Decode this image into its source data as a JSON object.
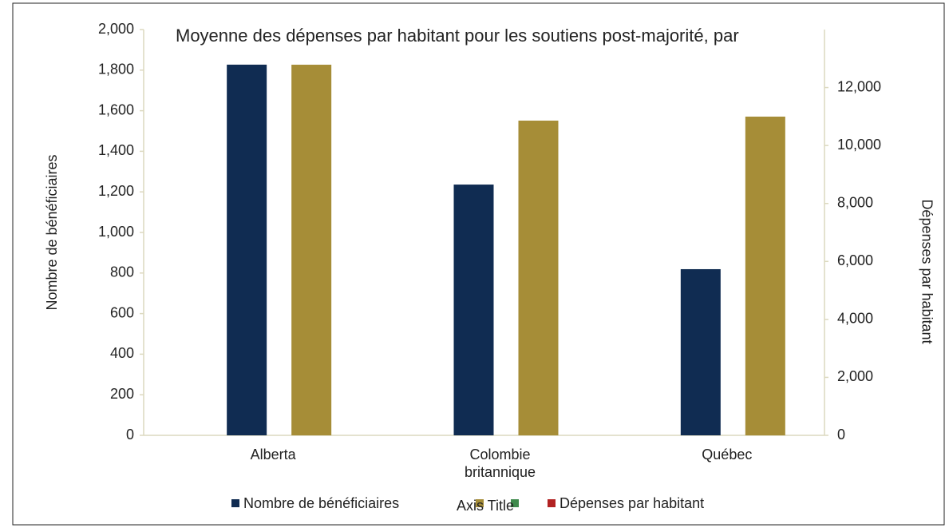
{
  "chart_data": {
    "type": "bar",
    "title": "Moyenne des dépenses par habitant pour les soutiens post-majorité, par",
    "categories": [
      "Alberta",
      "Colombie britannique",
      "Québec"
    ],
    "series": [
      {
        "name": "Nombre de bénéficiaires",
        "color": "#102c52",
        "values": [
          1827,
          1236,
          819
        ]
      },
      {
        "color": "#a68d37",
        "axis": "y2",
        "values": [
          12787,
          10858,
          10996
        ]
      }
    ],
    "ylabel": "Nombre de bénéficiaires",
    "y2label": "Dépenses par habitant",
    "xlabel": "Axis Title",
    "ylim": [
      0,
      2000
    ],
    "yticks": [
      0,
      200,
      400,
      600,
      800,
      {
        "value": 1000,
        "label": "1,000"
      },
      {
        "value": 1200,
        "label": "1,200"
      },
      {
        "value": 1400,
        "label": "1,400"
      },
      {
        "value": 1600,
        "label": "1,600"
      },
      {
        "value": 1800,
        "label": "1,800"
      },
      {
        "value": 2000,
        "label": "2,000"
      }
    ],
    "y2lim": [
      0,
      14000
    ],
    "y2ticks": [
      0,
      {
        "value": 2000,
        "label": "2,000"
      },
      {
        "value": 4000,
        "label": "4,000"
      },
      {
        "value": 6000,
        "label": "6,000"
      },
      {
        "value": 8000,
        "label": "8,000"
      },
      {
        "value": 10000,
        "label": "10,000"
      },
      {
        "value": 12000,
        "label": "12,000"
      }
    ],
    "legend": [
      {
        "name": "Nombre de bénéficiaires",
        "color": "#102c52"
      },
      {
        "color": "#a68d37"
      },
      {
        "color": "#3f8a4c"
      },
      {
        "name": "Dépenses par habitant",
        "color": "#b22222"
      }
    ]
  }
}
